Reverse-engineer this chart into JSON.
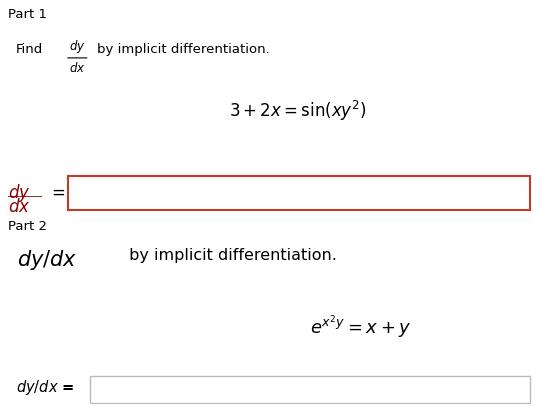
{
  "bg_color": "#ffffff",
  "panel1_color": "#efefef",
  "panel2_color": "#efefef",
  "panel3_color": "#efefef",
  "part1_label": "Part 1",
  "part2_label": "Part 2",
  "eq1": "$3 + 2x = \\sin(xy^2)$",
  "eq2": "$e^{x^2 y} = x + y$",
  "input_box1_edge": "#c0392b",
  "input_box2_edge": "#bbbbbb",
  "dark_red": "#8B0000",
  "black": "#000000",
  "white": "#ffffff",
  "fig_w": 5.43,
  "fig_h": 4.07,
  "dpi": 100
}
